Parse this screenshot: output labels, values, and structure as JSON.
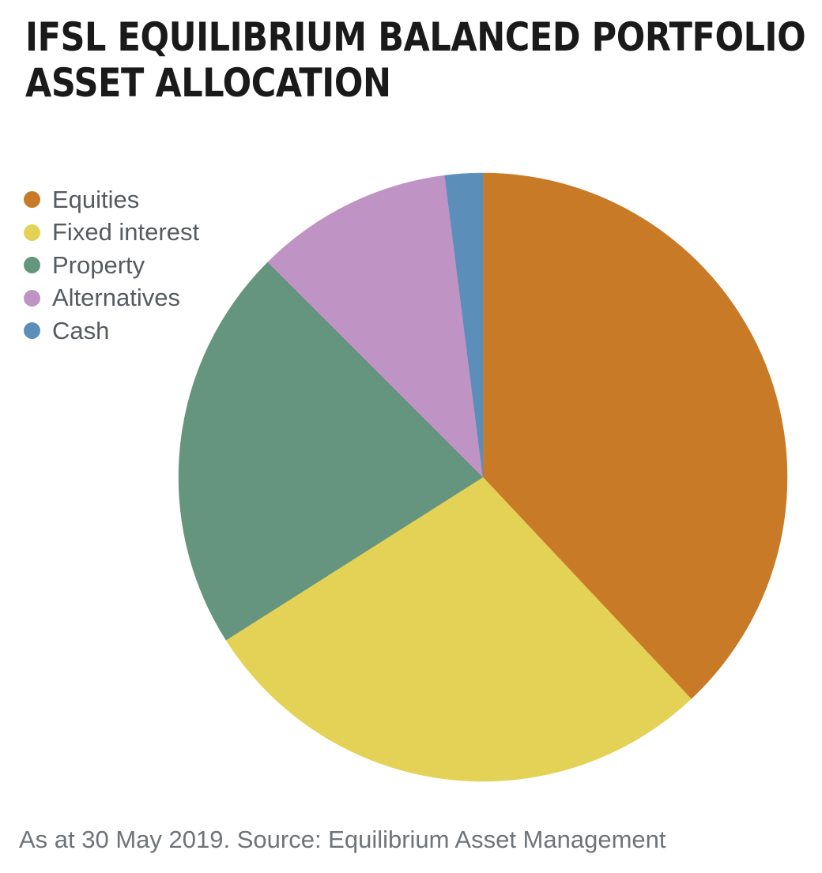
{
  "chart_data": {
    "type": "pie",
    "title_lines": [
      "IFSL EQUILIBRIUM BALANCED PORTFOLIO",
      "ASSET ALLOCATION"
    ],
    "categories": [
      "Equities",
      "Fixed interest",
      "Property",
      "Alternatives",
      "Cash"
    ],
    "values": [
      38,
      28,
      21.5,
      10.5,
      2
    ],
    "colors": [
      "#c97a26",
      "#e4d257",
      "#66957f",
      "#bf94c4",
      "#5b8fb9"
    ],
    "legend_position": "top-left",
    "start_angle_deg": 0,
    "direction": "clockwise"
  },
  "footer": {
    "source_text": "As at 30 May 2019. Source: Equilibrium Asset Management"
  }
}
